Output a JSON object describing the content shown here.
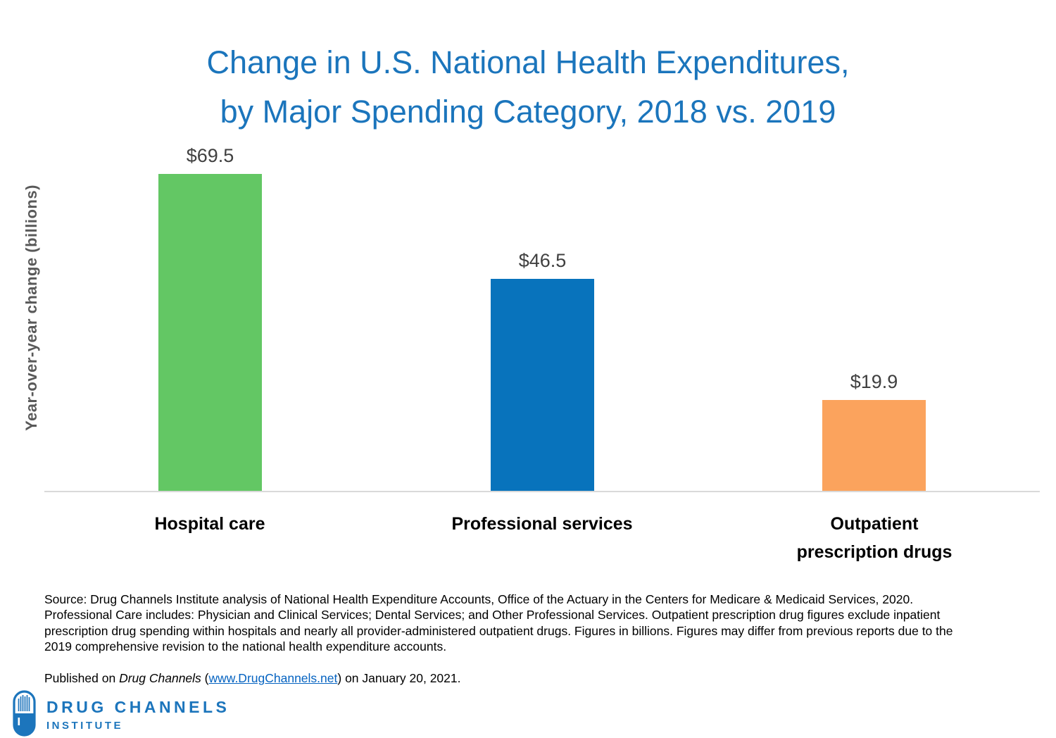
{
  "title": {
    "line1": "Change in U.S. National Health Expenditures,",
    "line2": "by Major Spending Category, 2018 vs. 2019"
  },
  "chart_data": {
    "type": "bar",
    "title": "Change in U.S. National Health Expenditures, by Major Spending Category, 2018 vs. 2019",
    "categories": [
      "Hospital care",
      "Professional services",
      "Outpatient prescription drugs"
    ],
    "values": [
      69.5,
      46.5,
      19.9
    ],
    "value_labels": [
      "$69.5",
      "$46.5",
      "$19.9"
    ],
    "bar_colors": [
      "#63C764",
      "#0873BC",
      "#FBA35D"
    ],
    "xlabel": "",
    "ylabel": "Year-over-year change (billions)",
    "ylim": [
      0,
      72
    ],
    "grid": false,
    "legend": "none"
  },
  "footnote": {
    "source_text": "Source: Drug Channels Institute analysis of National Health Expenditure Accounts, Office of the Actuary in the Centers for Medicare & Medicaid Services, 2020. Professional Care includes: Physician and Clinical Services; Dental Services; and Other Professional Services. Outpatient prescription drug figures exclude inpatient prescription drug spending within hospitals and nearly all provider-administered outpatient drugs. Figures in billions. Figures may differ from previous reports due to the 2019 comprehensive revision to the national health expenditure accounts."
  },
  "published": {
    "prefix": "Published on ",
    "blog_name": "Drug Channels",
    "open_paren": " (",
    "link_text": "www.DrugChannels.net",
    "close_paren": ")",
    "suffix": " on January 20, 2021."
  },
  "logo": {
    "line1": "DRUG CHANNELS",
    "line2": "INSTITUTE",
    "icon": "pill-capsule-icon"
  },
  "colors": {
    "title_blue": "#1B75BC",
    "axis_line": "#D9D9D9",
    "value_label_gray": "#404040",
    "ylabel_gray": "#595959",
    "category_label": "#000000",
    "link_blue": "#0563C1",
    "logo_blue": "#1C75BC"
  }
}
